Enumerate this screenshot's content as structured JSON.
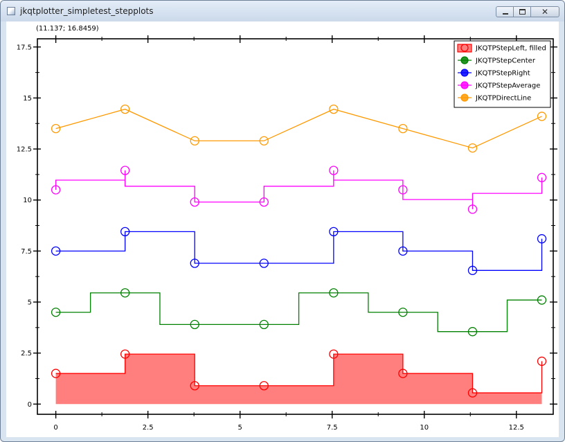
{
  "window": {
    "title": "jkqtplotter_simpletest_stepplots",
    "icon": "app-window-icon",
    "controls": {
      "minimize_icon": "minimize-icon",
      "maximize_icon": "maximize-icon",
      "close_icon": "close-icon",
      "close_glyph": "✕"
    }
  },
  "plot": {
    "coordinate_readout": "(11.137; 16.8459)"
  },
  "chart_data": {
    "type": "line",
    "title": "",
    "xlabel": "",
    "ylabel": "",
    "xlim": [
      -0.5,
      13.5
    ],
    "ylim": [
      -0.5,
      17.9
    ],
    "xticks": [
      0,
      2.5,
      5,
      7.5,
      10,
      12.5
    ],
    "xtick_labels": [
      "0",
      "2.5",
      "5",
      "7.5",
      "10",
      "12.5"
    ],
    "yticks": [
      0,
      2.5,
      5,
      7.5,
      10,
      12.5,
      15,
      17.5
    ],
    "ytick_labels": [
      "0",
      "2.5",
      "5",
      "7.5",
      "10",
      "12.5",
      "15",
      "17.5"
    ],
    "grid": false,
    "legend_position": "top-right",
    "x": [
      0,
      1.88,
      3.77,
      5.65,
      7.54,
      9.42,
      11.31,
      13.19
    ],
    "series": [
      {
        "name": "JKQTPStepLeft, filled",
        "step": "left",
        "filled": true,
        "color": "#ff0000",
        "fill_color": "#ff7f7f",
        "values": [
          1.5,
          2.45,
          0.9,
          0.9,
          2.45,
          1.5,
          0.55,
          2.1
        ]
      },
      {
        "name": "JKQTPStepCenter",
        "step": "center",
        "filled": false,
        "color": "#008000",
        "values": [
          4.5,
          5.45,
          3.9,
          3.9,
          5.45,
          4.5,
          3.55,
          5.1
        ]
      },
      {
        "name": "JKQTPStepRight",
        "step": "right",
        "filled": false,
        "color": "#0000ff",
        "values": [
          7.5,
          8.45,
          6.9,
          6.9,
          8.45,
          7.5,
          6.55,
          8.1
        ]
      },
      {
        "name": "JKQTPStepAverage",
        "step": "average",
        "filled": false,
        "color": "#ff00ff",
        "values": [
          10.5,
          11.45,
          9.9,
          9.9,
          11.45,
          10.5,
          9.55,
          11.1
        ]
      },
      {
        "name": "JKQTPDirectLine",
        "step": "none",
        "filled": false,
        "color": "#ff9900",
        "values": [
          13.5,
          14.45,
          12.9,
          12.9,
          14.45,
          13.5,
          12.55,
          14.1
        ]
      }
    ]
  }
}
